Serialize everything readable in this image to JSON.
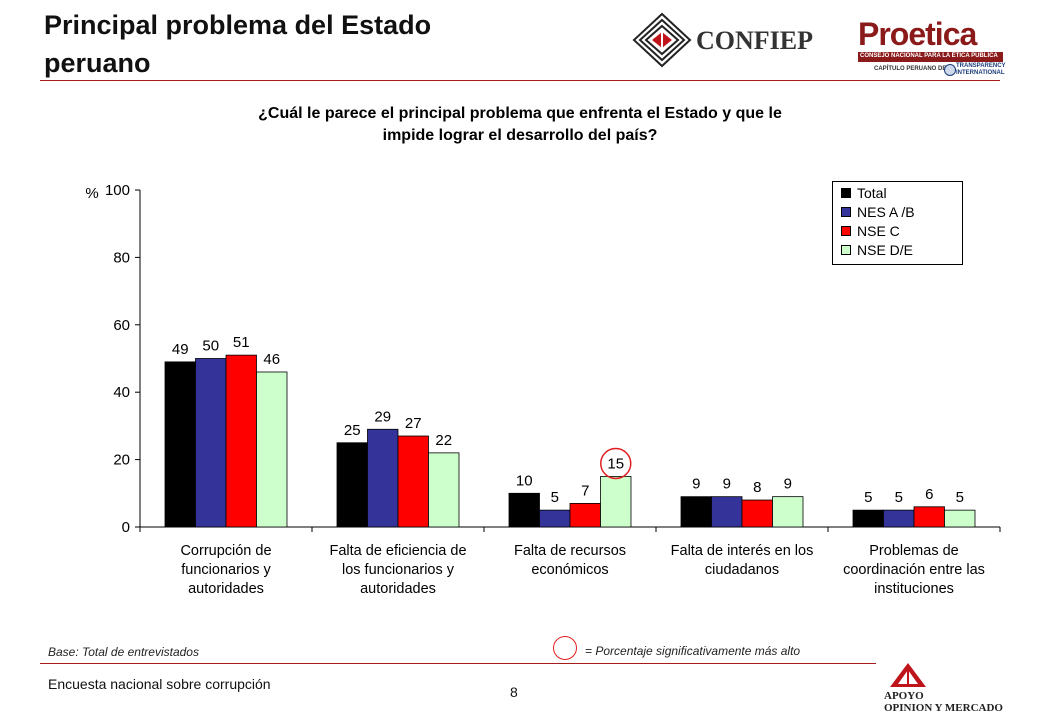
{
  "header": {
    "title_line1": "Principal problema del Estado",
    "title_line2": "peruano",
    "logo_confiep_text": "CONFIEP",
    "logo_proetica_text": "Proetica",
    "logo_proetica_sub": "CONSEJO NACIONAL PARA LA ÉTICA PÚBLICA",
    "logo_proetica_chapter": "CAPÍTULO PERUANO DE:",
    "logo_transparency_1": "TRANSPARENCY",
    "logo_transparency_2": "INTERNATIONAL"
  },
  "question": {
    "line1": "¿Cuál le parece el principal problema que enfrenta el Estado y que le",
    "line2": "impide lograr el desarrollo del país?"
  },
  "chart_data": {
    "type": "bar",
    "ylabel": "%",
    "ylim": [
      0,
      100
    ],
    "yticks": [
      0,
      20,
      40,
      60,
      80,
      100
    ],
    "legend_position": "top-right",
    "categories": [
      [
        "Corrupción de",
        "funcionarios y",
        "autoridades"
      ],
      [
        "Falta de eficiencia de",
        "los funcionarios y",
        "autoridades"
      ],
      [
        "Falta de recursos",
        "económicos"
      ],
      [
        "Falta de interés en los",
        "ciudadanos"
      ],
      [
        "Problemas de",
        "coordinación entre las",
        "instituciones"
      ]
    ],
    "series": [
      {
        "name": "Total",
        "color": "#000000",
        "values": [
          49,
          25,
          10,
          9,
          5
        ]
      },
      {
        "name": "NES A /B",
        "color": "#333399",
        "values": [
          50,
          29,
          5,
          9,
          5
        ]
      },
      {
        "name": "NSE C",
        "color": "#ff0000",
        "values": [
          51,
          27,
          7,
          8,
          6
        ]
      },
      {
        "name": "NSE D/E",
        "color": "#ccffcc",
        "values": [
          46,
          22,
          15,
          9,
          5
        ]
      }
    ],
    "highlighted": [
      {
        "category_index": 2,
        "series_index": 3
      }
    ]
  },
  "footer": {
    "base_note": "Base: Total de entrevistados",
    "significance_note": "= Porcentaje significativamente más alto",
    "survey_name": "Encuesta nacional sobre corrupción",
    "page_number": "8",
    "logo_apoyo_1": "APOYO",
    "logo_apoyo_2": "OPINION Y MERCADO"
  },
  "colors": {
    "accent_rule": "#a61b1b",
    "highlight_circle": "#e02020"
  }
}
